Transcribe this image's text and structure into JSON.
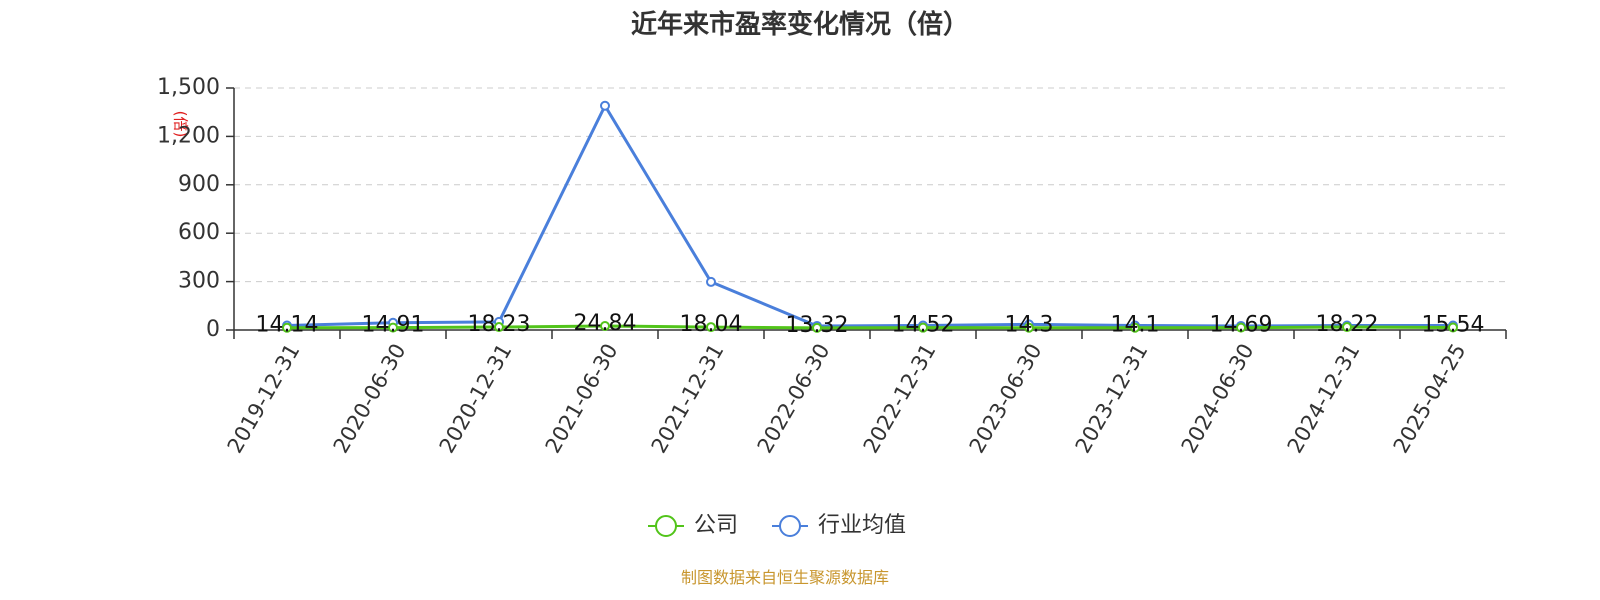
{
  "chart_data": {
    "type": "line",
    "title": "近年来市盈率变化情况（倍）",
    "ylabel": "(倍)",
    "ylim": [
      0,
      1500
    ],
    "yticks": [
      0,
      300,
      600,
      900,
      1200,
      1500
    ],
    "ytick_labels": [
      "0",
      "300",
      "600",
      "900",
      "1,200",
      "1,500"
    ],
    "grid": true,
    "legend_position": "bottom-center",
    "categories": [
      "2019-12-31",
      "2020-06-30",
      "2020-12-31",
      "2021-06-30",
      "2021-12-31",
      "2022-06-30",
      "2022-12-31",
      "2023-06-30",
      "2023-12-31",
      "2024-06-30",
      "2024-12-31",
      "2025-04-25"
    ],
    "series": [
      {
        "name": "公司",
        "color": "#52c41a",
        "values": [
          14.14,
          14.91,
          18.23,
          24.84,
          18.04,
          13.32,
          14.52,
          14.3,
          14.1,
          14.69,
          18.22,
          15.54
        ],
        "labels": [
          "14.14",
          "14.91",
          "18.23",
          "24.84",
          "18.04",
          "13.32",
          "14.52",
          "14.3",
          "14.1",
          "14.69",
          "18.22",
          "15.54"
        ]
      },
      {
        "name": "行业均值",
        "color": "#4a7fdb",
        "values": [
          28,
          45,
          50,
          1390,
          298,
          25,
          28,
          35,
          28,
          25,
          28,
          28
        ]
      }
    ]
  },
  "source_text": "制图数据来自恒生聚源数据库"
}
